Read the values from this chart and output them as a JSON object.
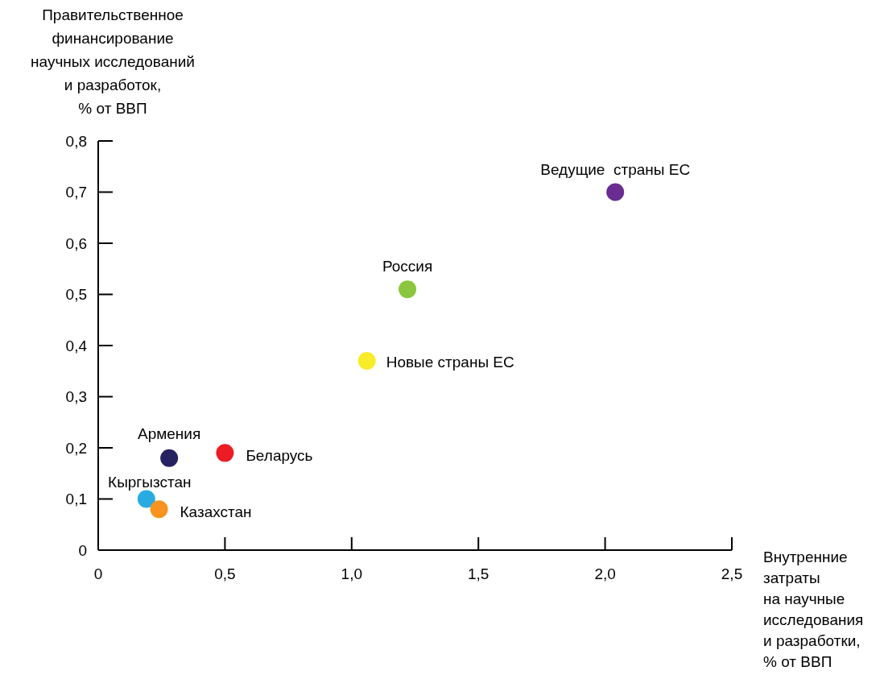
{
  "chart_data": {
    "type": "scatter",
    "xlabel": "Внутренние\nзатраты\nна научные\nисследования\nи разработки,\n% от ВВП",
    "ylabel": "Правительственное\nфинансирование\nнаучных исследований\nи разработок,\n% от ВВП",
    "xlim": [
      0,
      2.5
    ],
    "xticks": [
      0,
      {
        "value": 0.5,
        "label": "0,5"
      },
      {
        "value": 1,
        "label": "1,0"
      },
      {
        "value": 1.5,
        "label": "1,5"
      },
      {
        "value": 2,
        "label": "2,0"
      },
      {
        "value": 2.5,
        "label": "2,5"
      }
    ],
    "ylim": [
      0,
      0.8
    ],
    "yticks": [
      0,
      {
        "value": 0.1,
        "label": "0,1"
      },
      {
        "value": 0.2,
        "label": "0,2"
      },
      {
        "value": 0.3,
        "label": "0,3"
      },
      {
        "value": 0.4,
        "label": "0,4"
      },
      {
        "value": 0.5,
        "label": "0,5"
      },
      {
        "value": 0.6,
        "label": "0,6"
      },
      {
        "value": 0.7,
        "label": "0,7"
      },
      {
        "value": 0.8,
        "label": "0,8"
      }
    ],
    "grid": false,
    "marker": "circle",
    "series": [
      {
        "name": "Ведущие  страны ЕС",
        "color": "#6a2c91",
        "x": [
          2.04
        ],
        "values": [
          0.7
        ]
      },
      {
        "name": "Россия",
        "color": "#8cc63f",
        "x": [
          1.22
        ],
        "values": [
          0.51
        ]
      },
      {
        "name": "Новые страны ЕС",
        "color": "#f7ec2a",
        "x": [
          1.06
        ],
        "values": [
          0.37
        ]
      },
      {
        "name": "Беларусь",
        "color": "#ed1c24",
        "x": [
          0.5
        ],
        "values": [
          0.19
        ]
      },
      {
        "name": "Армения",
        "color": "#262262",
        "x": [
          0.28
        ],
        "values": [
          0.18
        ]
      },
      {
        "name": "Кыргызстан",
        "color": "#29abe2",
        "x": [
          0.19
        ],
        "values": [
          0.1
        ]
      },
      {
        "name": "Казахстан",
        "color": "#f7931e",
        "x": [
          0.24
        ],
        "values": [
          0.08
        ]
      }
    ]
  }
}
